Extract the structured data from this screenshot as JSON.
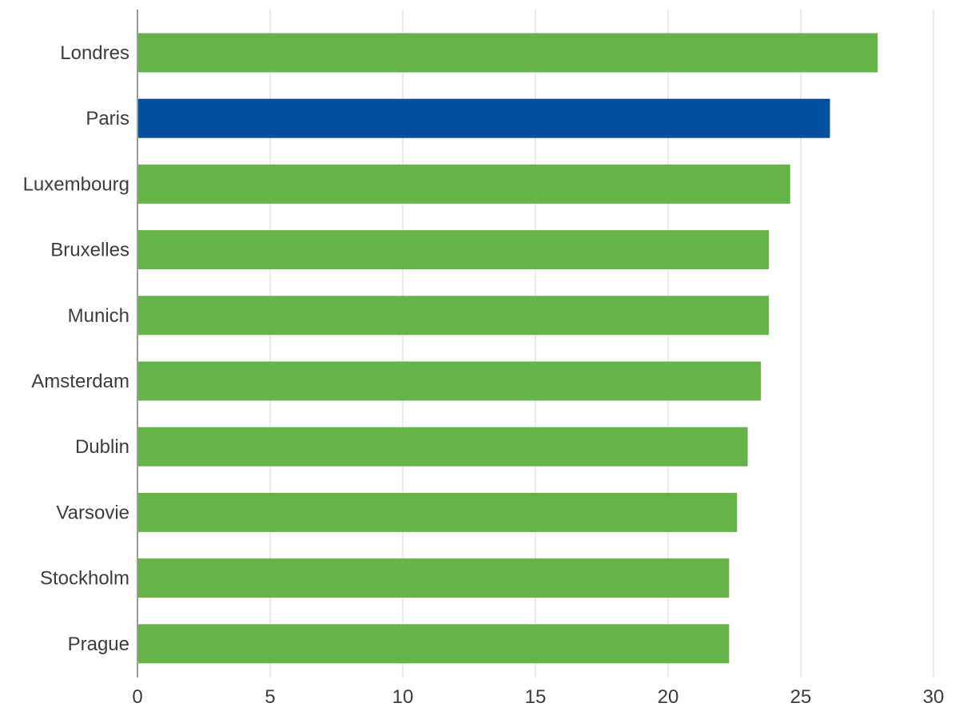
{
  "chart_data": {
    "type": "bar",
    "orientation": "horizontal",
    "title": "",
    "xlabel": "",
    "ylabel": "",
    "categories": [
      "Londres",
      "Paris",
      "Luxembourg",
      "Bruxelles",
      "Munich",
      "Amsterdam",
      "Dublin",
      "Varsovie",
      "Stockholm",
      "Prague"
    ],
    "values": [
      27.9,
      26.1,
      24.6,
      23.8,
      23.8,
      23.5,
      23.0,
      22.6,
      22.3,
      22.3
    ],
    "xlim": [
      0,
      30
    ],
    "xticks": [
      "0",
      "5",
      "10",
      "15",
      "20",
      "25",
      "30"
    ],
    "grid": "vertical",
    "legend": "none",
    "colors": {
      "default": "#66b447",
      "highlight": "#00509b"
    },
    "highlighted_category": "Paris"
  }
}
